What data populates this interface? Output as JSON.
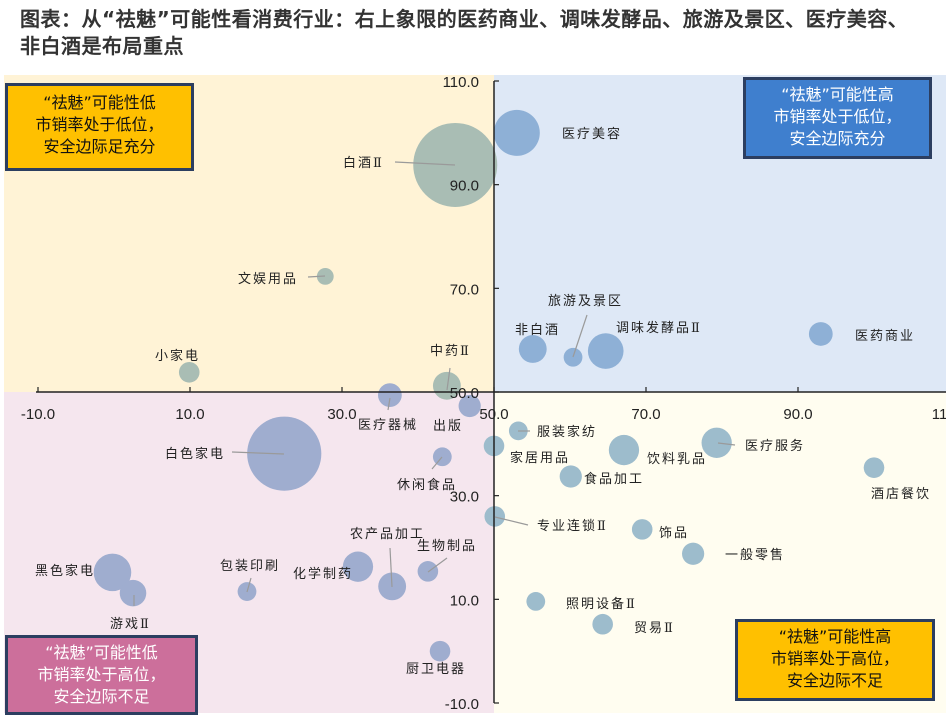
{
  "title": "图表：从“祛魅”可能性看消费行业：右上象限的医药商业、调味发酵品、旅游及景区、医疗美容、非白酒是布局重点",
  "quadrants": {
    "top_left": {
      "lines": [
        "“祛魅”可能性低",
        "市销率处于低位，",
        "安全边际足充分"
      ],
      "bg": "#fff3d6",
      "box": "#ffc000",
      "text": "#111111"
    },
    "top_right": {
      "lines": [
        "“祛魅”可能性高",
        "市销率处于低位，",
        "安全边际充分"
      ],
      "bg": "#dee8f6",
      "box": "#3f7fce",
      "text": "#ffffff"
    },
    "bottom_left": {
      "lines": [
        "“祛魅”可能性低",
        "市销率处于高位，",
        "安全边际不足"
      ],
      "bg": "#f5e6ee",
      "box": "#cc6f9b",
      "text": "#ffffff"
    },
    "bottom_right": {
      "lines": [
        "“祛魅”可能性高",
        "市销率处于高位，",
        "安全边际不足"
      ],
      "bg": "#fffdf0",
      "box": "#ffc000",
      "text": "#111111"
    }
  },
  "chart_data": {
    "type": "scatter",
    "subtype": "bubble",
    "xlim": [
      -10,
      110
    ],
    "ylim": [
      -10,
      110
    ],
    "x_ticks": [
      "-10.0",
      "10.0",
      "30.0",
      "50.0",
      "70.0",
      "90.0",
      "110.0"
    ],
    "y_ticks": [
      "-10.0",
      "10.0",
      "30.0",
      "50.0",
      "70.0",
      "90.0",
      "110.0"
    ],
    "axis_cross": [
      50,
      50
    ],
    "grid": false,
    "bubble_colors": {
      "top_left": "#a9bdb4",
      "top_right": "#8eb0d6",
      "bottom_left": "#9fadcf",
      "bottom_right": "#9dbccc"
    },
    "points": [
      {
        "label": "白酒Ⅱ",
        "x": 44.9,
        "y": 93.8,
        "size": 100
      },
      {
        "label": "医疗美容",
        "x": 53.0,
        "y": 100.0,
        "size": 30
      },
      {
        "label": "文娱用品",
        "x": 27.8,
        "y": 72.3,
        "size": 4
      },
      {
        "label": "小家电",
        "x": 9.9,
        "y": 53.8,
        "size": 6
      },
      {
        "label": "中药Ⅱ",
        "x": 43.8,
        "y": 51.2,
        "size": 11
      },
      {
        "label": "医疗器械",
        "x": 36.3,
        "y": 49.4,
        "size": 8
      },
      {
        "label": "出版",
        "x": 46.8,
        "y": 47.3,
        "size": 7
      },
      {
        "label": "非白酒",
        "x": 55.1,
        "y": 58.3,
        "size": 11
      },
      {
        "label": "旅游及景区",
        "x": 60.4,
        "y": 56.7,
        "size": 5
      },
      {
        "label": "调味发酵品Ⅱ",
        "x": 64.7,
        "y": 57.9,
        "size": 18
      },
      {
        "label": "医药商业",
        "x": 93.0,
        "y": 61.2,
        "size": 8
      },
      {
        "label": "白色家电",
        "x": 22.4,
        "y": 38.1,
        "size": 78
      },
      {
        "label": "休闲食品",
        "x": 43.2,
        "y": 37.5,
        "size": 5
      },
      {
        "label": "黑色家电",
        "x": -0.2,
        "y": 15.2,
        "size": 20
      },
      {
        "label": "游戏Ⅱ",
        "x": 2.5,
        "y": 11.2,
        "size": 10
      },
      {
        "label": "包装印刷",
        "x": 17.5,
        "y": 11.5,
        "size": 5
      },
      {
        "label": "化学制药",
        "x": 32.1,
        "y": 16.3,
        "size": 13
      },
      {
        "label": "农产品加工",
        "x": 36.6,
        "y": 12.5,
        "size": 11
      },
      {
        "label": "生物制品",
        "x": 41.3,
        "y": 15.4,
        "size": 6
      },
      {
        "label": "厨卫电器",
        "x": 42.9,
        "y": 0.0,
        "size": 6
      },
      {
        "label": "家居用品",
        "x": 50.0,
        "y": 39.6,
        "size": 6
      },
      {
        "label": "服装家纺",
        "x": 53.2,
        "y": 42.5,
        "size": 5
      },
      {
        "label": "饮料乳品",
        "x": 67.1,
        "y": 38.8,
        "size": 13
      },
      {
        "label": "医疗服务",
        "x": 79.3,
        "y": 40.2,
        "size": 13
      },
      {
        "label": "酒店餐饮",
        "x": 100.0,
        "y": 35.4,
        "size": 6
      },
      {
        "label": "食品加工",
        "x": 60.1,
        "y": 33.7,
        "size": 7
      },
      {
        "label": "专业连锁Ⅱ",
        "x": 50.1,
        "y": 26.0,
        "size": 6
      },
      {
        "label": "饰品",
        "x": 69.5,
        "y": 23.5,
        "size": 6
      },
      {
        "label": "一般零售",
        "x": 76.2,
        "y": 18.8,
        "size": 7
      },
      {
        "label": "照明设备Ⅱ",
        "x": 55.5,
        "y": 9.6,
        "size": 5
      },
      {
        "label": "贸易Ⅱ",
        "x": 64.3,
        "y": 5.2,
        "size": 6
      }
    ]
  }
}
